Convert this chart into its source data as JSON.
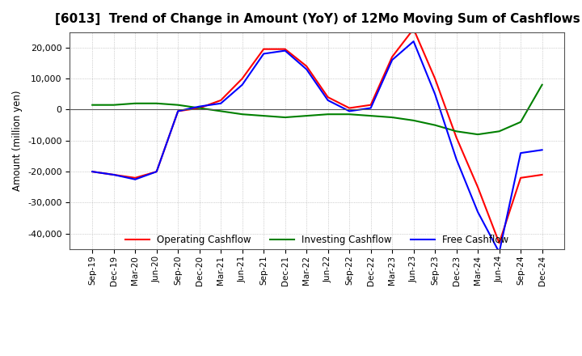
{
  "title": "[6013]  Trend of Change in Amount (YoY) of 12Mo Moving Sum of Cashflows",
  "ylabel": "Amount (million yen)",
  "ylim": [
    -45000,
    25000
  ],
  "yticks": [
    -40000,
    -30000,
    -20000,
    -10000,
    0,
    10000,
    20000
  ],
  "x_labels": [
    "Sep-19",
    "Dec-19",
    "Mar-20",
    "Jun-20",
    "Sep-20",
    "Dec-20",
    "Mar-21",
    "Jun-21",
    "Sep-21",
    "Dec-21",
    "Mar-22",
    "Jun-22",
    "Sep-22",
    "Dec-22",
    "Mar-23",
    "Jun-23",
    "Sep-23",
    "Dec-23",
    "Mar-24",
    "Jun-24",
    "Sep-24",
    "Dec-24"
  ],
  "operating": [
    -20000,
    -21000,
    -22000,
    -20000,
    -500,
    500,
    3000,
    10000,
    19500,
    19500,
    14000,
    4000,
    500,
    1500,
    17000,
    26000,
    10000,
    -9000,
    -25000,
    -43000,
    -22000,
    -21000
  ],
  "investing": [
    1500,
    1500,
    2000,
    2000,
    1500,
    500,
    -500,
    -1500,
    -2000,
    -2500,
    -2000,
    -1500,
    -1500,
    -2000,
    -2500,
    -3500,
    -5000,
    -7000,
    -8000,
    -7000,
    -4000,
    8000
  ],
  "free_cashflow": [
    -20000,
    -21000,
    -22500,
    -20000,
    -500,
    1000,
    2000,
    8000,
    18000,
    19000,
    13000,
    3000,
    -500,
    500,
    16000,
    22000,
    5000,
    -16000,
    -33000,
    -46000,
    -14000,
    -13000
  ],
  "operating_color": "#FF0000",
  "investing_color": "#008000",
  "free_color": "#0000FF",
  "bg_color": "#FFFFFF",
  "grid_color": "#AAAAAA",
  "title_fontsize": 11,
  "legend_labels": [
    "Operating Cashflow",
    "Investing Cashflow",
    "Free Cashflow"
  ]
}
